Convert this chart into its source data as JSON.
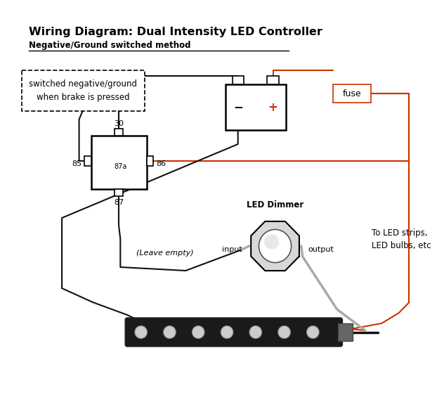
{
  "title": "Wiring Diagram: Dual Intensity LED Controller",
  "subtitle": "Negative/Ground switched method",
  "bg_color": "#ffffff",
  "wire_black": "#111111",
  "wire_red": "#cc3300",
  "wire_gray": "#aaaaaa",
  "note_text": "switched negative/ground\nwhen brake is pressed",
  "relay_label_30": "30",
  "relay_label_85": "85",
  "relay_label_86": "86",
  "relay_label_87a": "87a",
  "relay_label_87": "87",
  "battery_minus": "−",
  "battery_plus": "+",
  "fuse_label": "fuse",
  "dimmer_label": "LED Dimmer",
  "dimmer_input": "input",
  "dimmer_output": "output",
  "leave_empty": "(Leave empty)",
  "to_led": "To LED strips,\nLED bulbs, etc"
}
